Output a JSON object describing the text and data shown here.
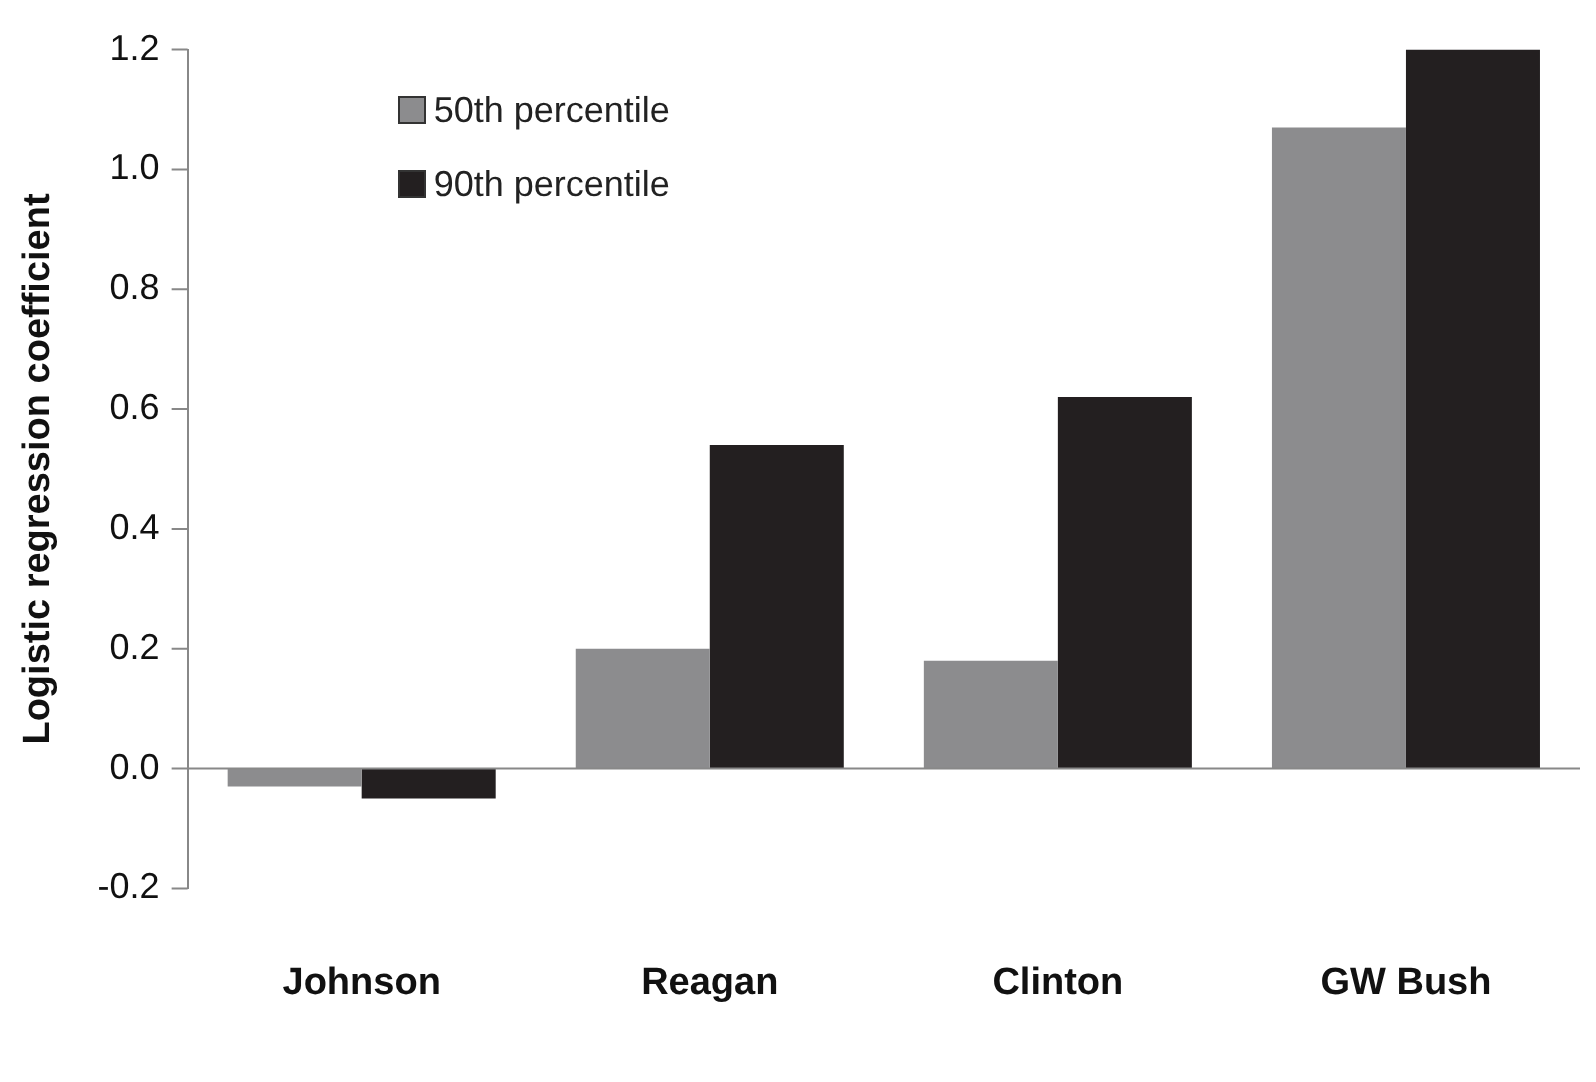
{
  "chart_data": {
    "type": "bar",
    "ylabel": "Logistic regression coefficient",
    "categories": [
      "Johnson",
      "Reagan",
      "Clinton",
      "GW Bush"
    ],
    "series": [
      {
        "name": "50th percentile",
        "color": "#8c8c8e",
        "values": [
          -0.03,
          0.2,
          0.18,
          1.07
        ]
      },
      {
        "name": "90th percentile",
        "color": "#231f20",
        "values": [
          -0.05,
          0.54,
          0.62,
          1.2
        ]
      }
    ],
    "ylim": [
      -0.2,
      1.2
    ],
    "yticks": [
      {
        "value": -0.2,
        "label": "-0.2"
      },
      {
        "value": 0,
        "label": "0.0"
      },
      {
        "value": 0.2,
        "label": "0.2"
      },
      {
        "value": 0.4,
        "label": "0.4"
      },
      {
        "value": 0.6,
        "label": "0.6"
      },
      {
        "value": 0.8,
        "label": "0.8"
      },
      {
        "value": 1,
        "label": "1.0"
      },
      {
        "value": 1.2,
        "label": "1.2"
      }
    ],
    "legend": "top left"
  }
}
